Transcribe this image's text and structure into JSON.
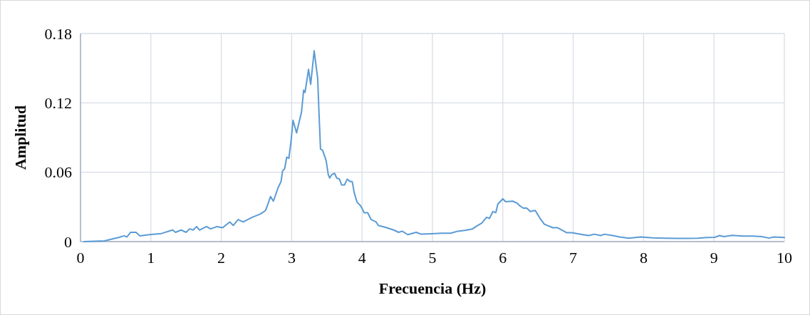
{
  "chart_data": {
    "type": "line",
    "xlabel": "Frecuencia (Hz)",
    "ylabel": "Amplitud",
    "xlim": [
      0,
      10
    ],
    "xticks": [
      0,
      1,
      2,
      3,
      4,
      5,
      6,
      7,
      8,
      9,
      10
    ],
    "ylim": [
      0,
      0.18
    ],
    "yticks": [
      0,
      0.06,
      0.12,
      0.18
    ],
    "grid": true,
    "marker": "none",
    "line_style": "solid",
    "series": [
      {
        "color": "#5b9bd5",
        "x": [
          0.05,
          0.34,
          0.54,
          0.62,
          0.66,
          0.71,
          0.79,
          0.84,
          0.98,
          1.15,
          1.31,
          1.35,
          1.43,
          1.5,
          1.55,
          1.6,
          1.65,
          1.69,
          1.79,
          1.85,
          1.94,
          2.02,
          2.12,
          2.17,
          2.24,
          2.31,
          2.44,
          2.56,
          2.63,
          2.66,
          2.7,
          2.74,
          2.81,
          2.85,
          2.87,
          2.9,
          2.93,
          2.96,
          2.99,
          3.02,
          3.07,
          3.14,
          3.17,
          3.19,
          3.24,
          3.27,
          3.32,
          3.37,
          3.39,
          3.41,
          3.44,
          3.49,
          3.52,
          3.54,
          3.57,
          3.61,
          3.64,
          3.68,
          3.71,
          3.75,
          3.79,
          3.83,
          3.86,
          3.89,
          3.93,
          3.98,
          4.03,
          4.08,
          4.13,
          4.2,
          4.23,
          4.35,
          4.45,
          4.52,
          4.57,
          4.65,
          4.77,
          4.84,
          4.99,
          5.13,
          5.26,
          5.36,
          5.46,
          5.57,
          5.63,
          5.7,
          5.77,
          5.81,
          5.86,
          5.9,
          5.93,
          6.0,
          6.04,
          6.14,
          6.21,
          6.23,
          6.29,
          6.34,
          6.39,
          6.46,
          6.53,
          6.59,
          6.71,
          6.78,
          6.91,
          6.98,
          7.12,
          7.22,
          7.3,
          7.39,
          7.44,
          7.56,
          7.66,
          7.79,
          7.96,
          8.13,
          8.3,
          8.47,
          8.63,
          8.77,
          8.9,
          9.01,
          9.08,
          9.14,
          9.26,
          9.41,
          9.55,
          9.68,
          9.78,
          9.85,
          10.0
        ],
        "values": [
          0,
          0.0006,
          0.0035,
          0.005,
          0.004,
          0.008,
          0.008,
          0.005,
          0.006,
          0.007,
          0.01,
          0.008,
          0.01,
          0.008,
          0.011,
          0.01,
          0.013,
          0.01,
          0.013,
          0.011,
          0.013,
          0.012,
          0.017,
          0.014,
          0.019,
          0.017,
          0.021,
          0.024,
          0.027,
          0.032,
          0.039,
          0.035,
          0.047,
          0.052,
          0.061,
          0.063,
          0.073,
          0.072,
          0.086,
          0.105,
          0.094,
          0.112,
          0.131,
          0.129,
          0.149,
          0.136,
          0.165,
          0.141,
          0.109,
          0.08,
          0.079,
          0.07,
          0.058,
          0.055,
          0.058,
          0.059,
          0.055,
          0.054,
          0.049,
          0.049,
          0.054,
          0.052,
          0.052,
          0.042,
          0.034,
          0.031,
          0.025,
          0.025,
          0.019,
          0.017,
          0.014,
          0.012,
          0.01,
          0.008,
          0.009,
          0.006,
          0.008,
          0.0064,
          0.0068,
          0.0072,
          0.0072,
          0.009,
          0.0097,
          0.011,
          0.0135,
          0.016,
          0.021,
          0.02,
          0.026,
          0.025,
          0.0325,
          0.037,
          0.0345,
          0.035,
          0.033,
          0.0315,
          0.029,
          0.029,
          0.026,
          0.027,
          0.02,
          0.015,
          0.012,
          0.012,
          0.0077,
          0.0077,
          0.0062,
          0.0052,
          0.0064,
          0.0052,
          0.0064,
          0.0052,
          0.004,
          0.003,
          0.004,
          0.0033,
          0.0029,
          0.0027,
          0.0027,
          0.0029,
          0.0035,
          0.0037,
          0.0052,
          0.0043,
          0.0054,
          0.0048,
          0.0048,
          0.0043,
          0.003,
          0.004,
          0.0035
        ]
      }
    ]
  }
}
